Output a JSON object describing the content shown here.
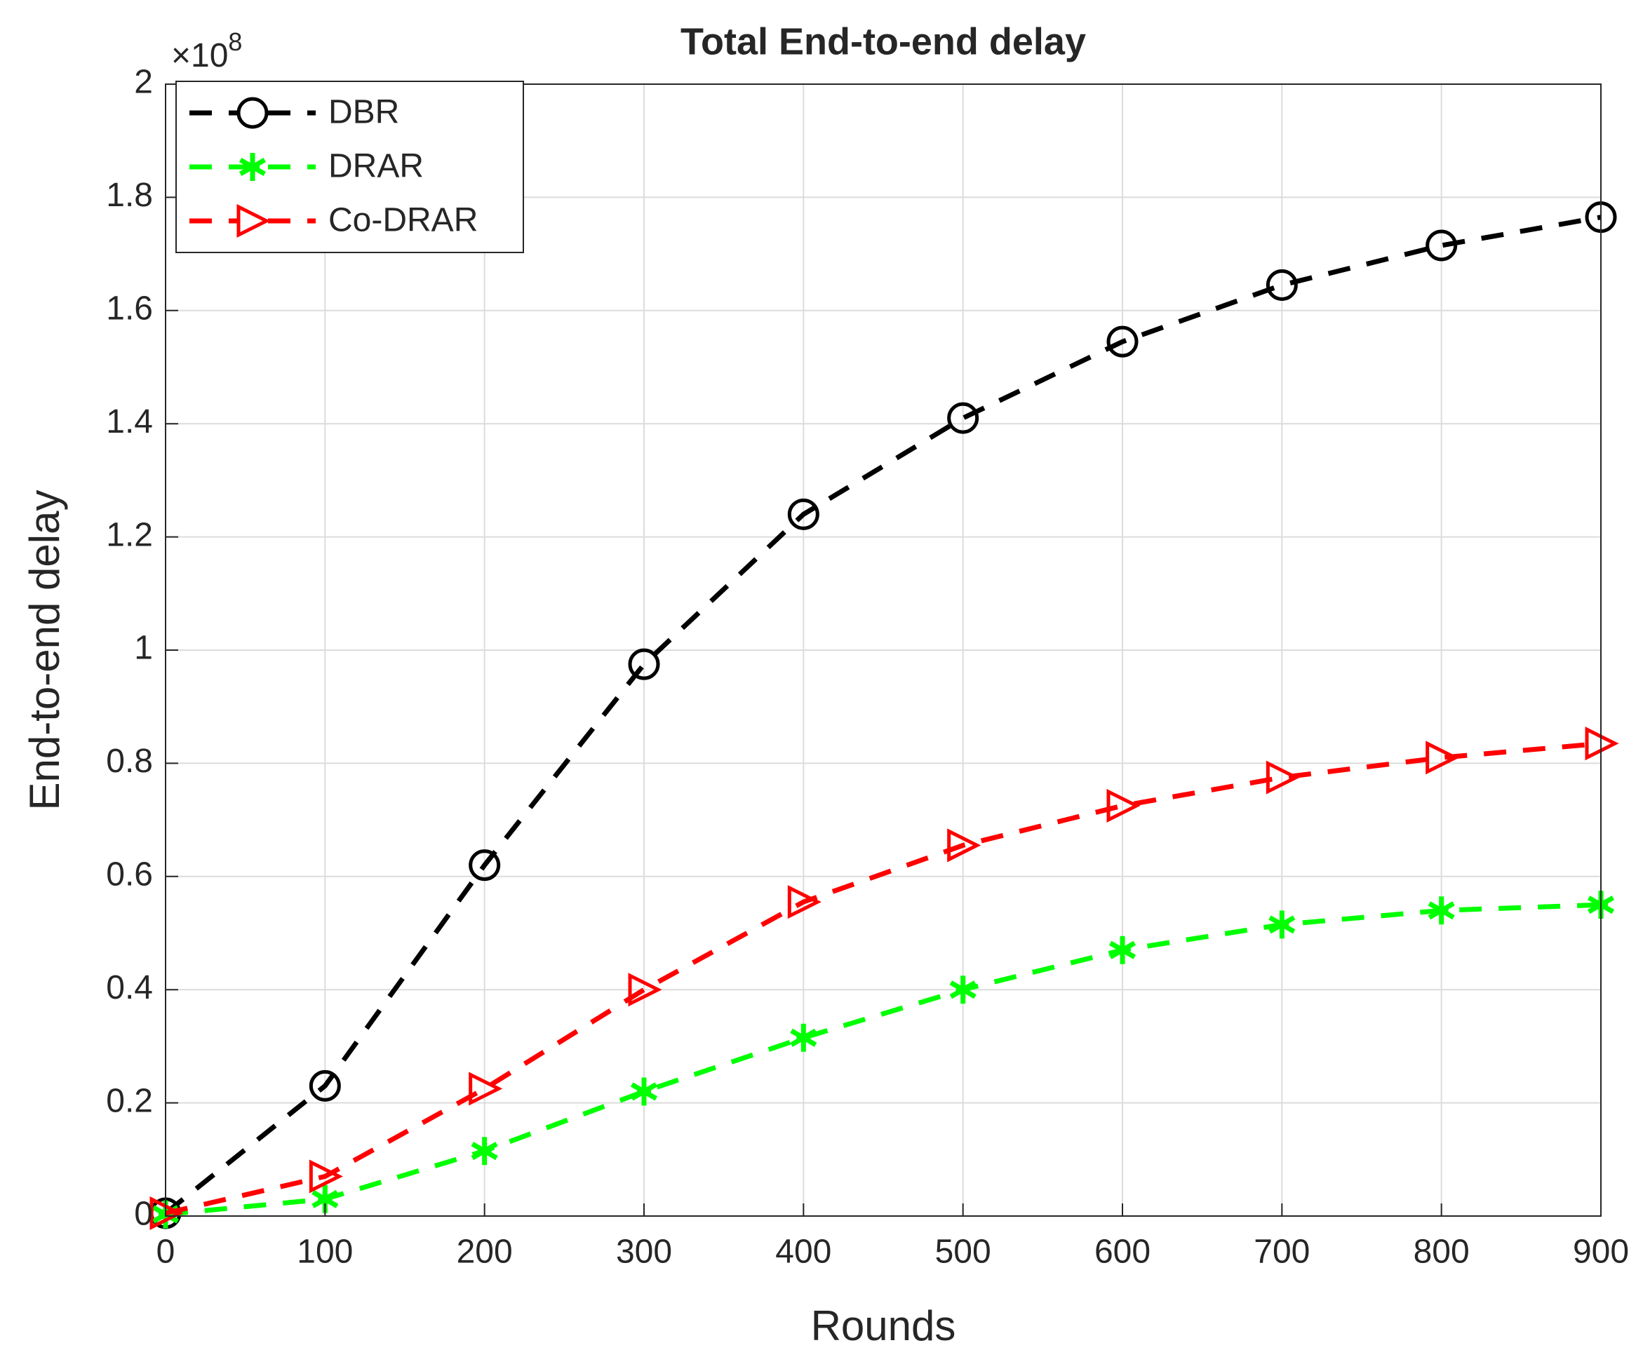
{
  "chart_data": {
    "type": "line",
    "title": "Total End-to-end delay",
    "x_label": "Rounds",
    "y_label": "End-to-end delay",
    "y_multiplier": {
      "base": "×10",
      "exponent": "8"
    },
    "x": [
      0,
      100,
      200,
      300,
      400,
      500,
      600,
      700,
      800,
      900
    ],
    "series": [
      {
        "name": "DBR",
        "color": "#000000",
        "marker": "circle",
        "values": [
          0.005,
          0.23,
          0.62,
          0.975,
          1.24,
          1.41,
          1.545,
          1.645,
          1.715,
          1.765
        ]
      },
      {
        "name": "DRAR",
        "color": "#00ff00",
        "marker": "star",
        "values": [
          0.003,
          0.03,
          0.115,
          0.22,
          0.315,
          0.4,
          0.47,
          0.515,
          0.54,
          0.55
        ]
      },
      {
        "name": "Co-DRAR",
        "color": "#ff0000",
        "marker": "triangle-right",
        "values": [
          0.005,
          0.07,
          0.225,
          0.4,
          0.555,
          0.655,
          0.725,
          0.775,
          0.81,
          0.835
        ]
      }
    ],
    "xlim": [
      0,
      900
    ],
    "xticks": [
      0,
      100,
      200,
      300,
      400,
      500,
      600,
      700,
      800,
      900
    ],
    "ylim": [
      0,
      2
    ],
    "yticks": [
      0,
      0.2,
      0.4,
      0.6,
      0.8,
      1,
      1.2,
      1.4,
      1.6,
      1.8,
      2
    ],
    "grid": true,
    "legend_position": "upper-left"
  }
}
